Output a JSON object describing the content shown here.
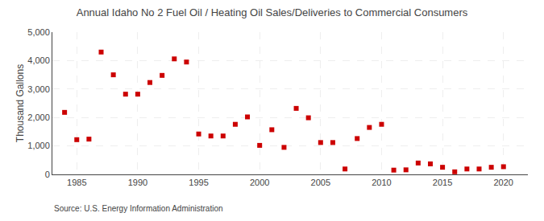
{
  "chart_data": {
    "type": "scatter",
    "title": "Annual Idaho No 2 Fuel Oil / Heating Oil Sales/Deliveries to Commercial Consumers",
    "ylabel": "Thousand Gallons",
    "annotations": [
      "Source: U.S. Energy Information Administration"
    ],
    "x": [
      1984,
      1985,
      1986,
      1987,
      1988,
      1989,
      1990,
      1991,
      1992,
      1993,
      1994,
      1995,
      1996,
      1997,
      1998,
      1999,
      2000,
      2001,
      2002,
      2003,
      2004,
      2005,
      2006,
      2007,
      2008,
      2009,
      2010,
      2011,
      2012,
      2013,
      2014,
      2015,
      2016,
      2017,
      2018,
      2019,
      2020
    ],
    "values": [
      2180,
      1220,
      1240,
      4300,
      3500,
      2820,
      2820,
      3230,
      3480,
      4060,
      3950,
      1420,
      1350,
      1350,
      1760,
      2020,
      1020,
      1570,
      950,
      2320,
      1990,
      1120,
      1120,
      190,
      1260,
      1650,
      1760,
      150,
      160,
      400,
      370,
      250,
      90,
      190,
      190,
      250,
      270
    ],
    "color": "#cc0000",
    "marker": "square",
    "xlim": [
      1983,
      2022
    ],
    "xticks": [
      1985,
      1990,
      1995,
      2000,
      2005,
      2010,
      2015,
      2020
    ],
    "ylim": [
      0,
      5000
    ],
    "yticks": [
      0,
      {
        "value": 1000,
        "label": "1,000"
      },
      {
        "value": 2000,
        "label": "2,000"
      },
      {
        "value": 3000,
        "label": "3,000"
      },
      {
        "value": 4000,
        "label": "4,000"
      },
      {
        "value": 5000,
        "label": "5,000"
      }
    ],
    "grid": true
  }
}
